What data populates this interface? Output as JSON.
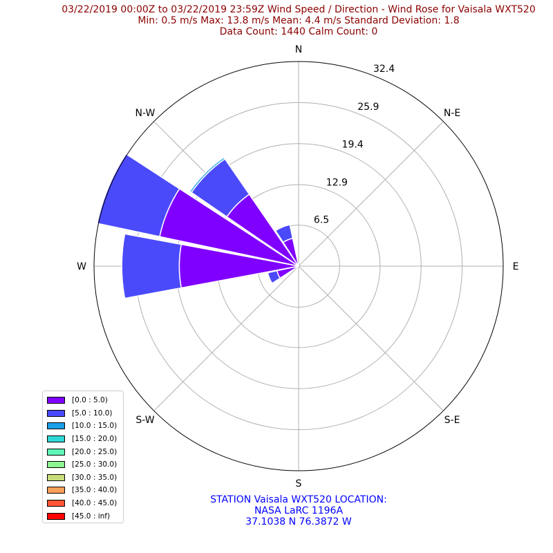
{
  "title": {
    "line1": "03/22/2019 00:00Z to 03/22/2019 23:59Z Wind Speed / Direction - Wind Rose for Vaisala WXT520",
    "line2": "Min: 0.5 m/s   Max: 13.8 m/s   Mean: 4.4 m/s  Standard Deviation: 1.8",
    "line3": "Data Count: 1440  Calm Count:  0"
  },
  "station": {
    "line1": "STATION Vaisala WXT520 LOCATION:",
    "line2": "NASA LaRC 1196A",
    "line3": "37.1038 N 76.3872 W"
  },
  "chart_data": {
    "type": "wind_rose",
    "directions": [
      "N",
      "N-E",
      "E",
      "S-E",
      "S",
      "S-W",
      "W",
      "N-W"
    ],
    "radial_ticks": [
      "6.5",
      "12.9",
      "19.4",
      "25.9",
      "32.4"
    ],
    "radial_max": 32.4,
    "grid": true,
    "legend_position": "lower-left",
    "bins": [
      {
        "label": "[0.0 : 5.0)",
        "color": "#8000ff"
      },
      {
        "label": "[5.0 : 10.0)",
        "color": "#4a4afb"
      },
      {
        "label": "[10.0 : 15.0)",
        "color": "#1c9ee6"
      },
      {
        "label": "[15.0 : 20.0)",
        "color": "#2fd8d6"
      },
      {
        "label": "[20.0 : 25.0)",
        "color": "#5cf5b5"
      },
      {
        "label": "[25.0 : 30.0)",
        "color": "#8cf591"
      },
      {
        "label": "[30.0 : 35.0)",
        "color": "#c8dc7a"
      },
      {
        "label": "[35.0 : 40.0)",
        "color": "#ffa05a"
      },
      {
        "label": "[40.0 : 45.0)",
        "color": "#ff5535"
      },
      {
        "label": "[45.0 : inf)",
        "color": "#ff0000"
      }
    ],
    "sectors": [
      {
        "direction_deg": 0.0,
        "counts": [
          0,
          0,
          0
        ]
      },
      {
        "direction_deg": 22.5,
        "counts": [
          0,
          0,
          0
        ]
      },
      {
        "direction_deg": 45.0,
        "counts": [
          0,
          0,
          0
        ]
      },
      {
        "direction_deg": 67.5,
        "counts": [
          0,
          0,
          0
        ]
      },
      {
        "direction_deg": 90.0,
        "counts": [
          0,
          0,
          0
        ]
      },
      {
        "direction_deg": 112.5,
        "counts": [
          0,
          0,
          0
        ]
      },
      {
        "direction_deg": 135.0,
        "counts": [
          0,
          0,
          0
        ]
      },
      {
        "direction_deg": 157.5,
        "counts": [
          0,
          0,
          0
        ]
      },
      {
        "direction_deg": 180.0,
        "counts": [
          0,
          0,
          0
        ]
      },
      {
        "direction_deg": 202.5,
        "counts": [
          0,
          0,
          0
        ]
      },
      {
        "direction_deg": 225.0,
        "counts": [
          0,
          0,
          0
        ]
      },
      {
        "direction_deg": 247.5,
        "counts": [
          3.5,
          1.5,
          0
        ]
      },
      {
        "direction_deg": 270.0,
        "counts": [
          18.9,
          9.1,
          0
        ]
      },
      {
        "direction_deg": 292.5,
        "counts": [
          22.5,
          10.1,
          0
        ]
      },
      {
        "direction_deg": 315.0,
        "counts": [
          13.8,
          6.8,
          0.3
        ]
      },
      {
        "direction_deg": 337.5,
        "counts": [
          4.5,
          2.2,
          0
        ]
      }
    ]
  }
}
